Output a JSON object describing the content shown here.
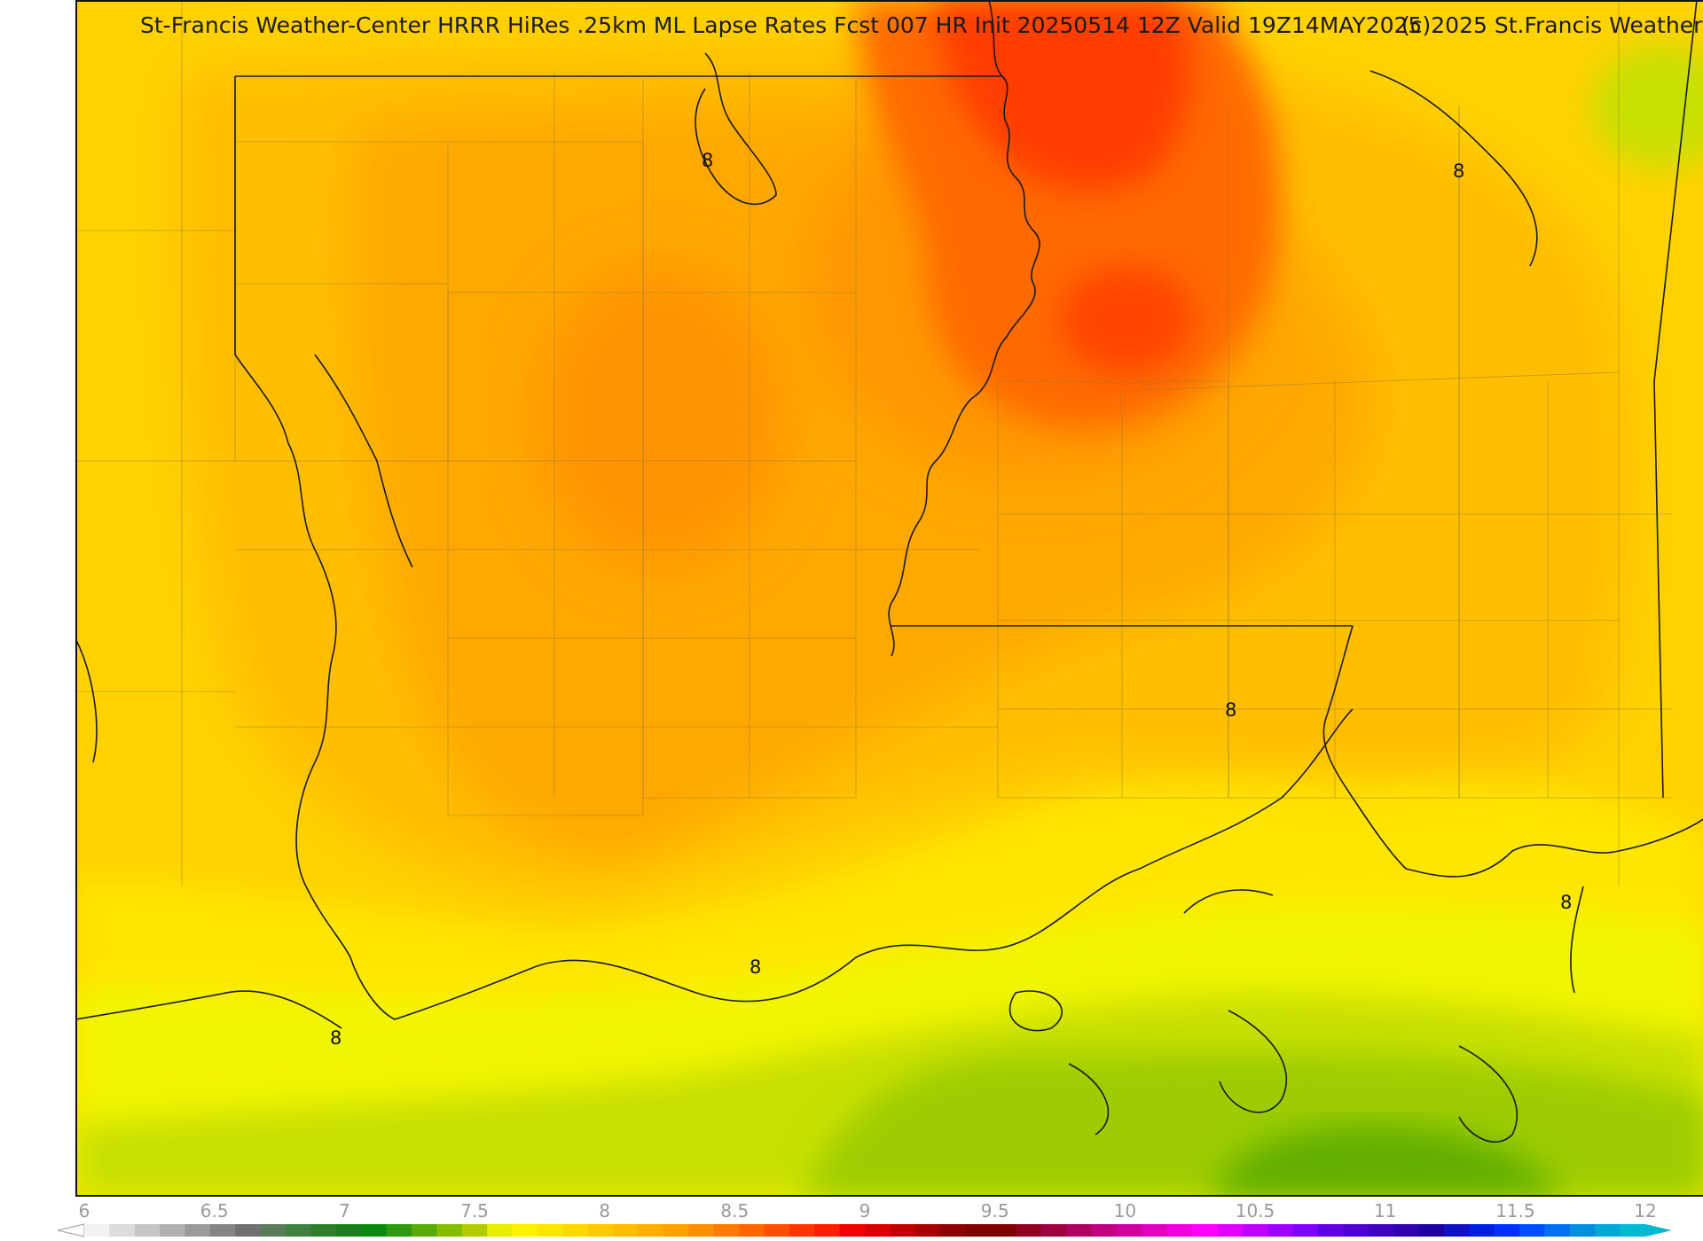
{
  "header": {
    "title": "St-Francis Weather-Center HRRR HiRes .25km ML Lapse Rates  Fcst 007 HR Init 20250514 12Z  Valid 19Z14MAY2025",
    "copyright": "(c)2025 St.Francis Weather"
  },
  "map": {
    "contour_labels": [
      "8",
      "8",
      "8",
      "8",
      "8",
      "8"
    ],
    "colors": {
      "yellow": "#ffe600",
      "gold": "#ffd200",
      "orange_light": "#ffbe00",
      "orange": "#ffa800",
      "orange_dark": "#ff9400",
      "red_orange": "#ff6a00",
      "red": "#ff3c00",
      "yellow_green": "#f2f500",
      "lime": "#c8e000",
      "green": "#9ccc00",
      "green_dark": "#60ae00",
      "boundary": "#1a1a1a"
    }
  },
  "colorbar": {
    "tick_labels": [
      "6",
      "6.5",
      "7",
      "7.5",
      "8",
      "8.5",
      "9",
      "9.5",
      "10",
      "10.5",
      "11",
      "11.5",
      "12"
    ],
    "range": [
      6,
      12
    ],
    "colors": [
      "#f2f2f2",
      "#dcdcdc",
      "#c6c6c6",
      "#b0b0b0",
      "#9a9a9a",
      "#858585",
      "#707070",
      "#5b7b5b",
      "#3f7f3f",
      "#2c7f2c",
      "#1a7f1a",
      "#0a8a0a",
      "#2e9a0e",
      "#5aaa08",
      "#86bc00",
      "#b2cc00",
      "#e8ee00",
      "#fff200",
      "#ffe600",
      "#ffd800",
      "#ffca00",
      "#ffbc00",
      "#ffae00",
      "#ffa000",
      "#ff8e00",
      "#ff7a00",
      "#ff6600",
      "#ff4e00",
      "#ff3600",
      "#ff1e00",
      "#f00000",
      "#d80000",
      "#c00000",
      "#a80000",
      "#900000",
      "#800000",
      "#800000",
      "#900020",
      "#a00040",
      "#b00060",
      "#c00080",
      "#d000a0",
      "#e000c0",
      "#f000e0",
      "#ff00ff",
      "#e000ff",
      "#c000ff",
      "#a000ff",
      "#8000ff",
      "#6000e0",
      "#5000d0",
      "#4000c0",
      "#3000b0",
      "#2000a0",
      "#1010c0",
      "#0020e0",
      "#0030ff",
      "#0050ff",
      "#0070f0",
      "#0090e0",
      "#00a8d8",
      "#00b8d0"
    ]
  }
}
